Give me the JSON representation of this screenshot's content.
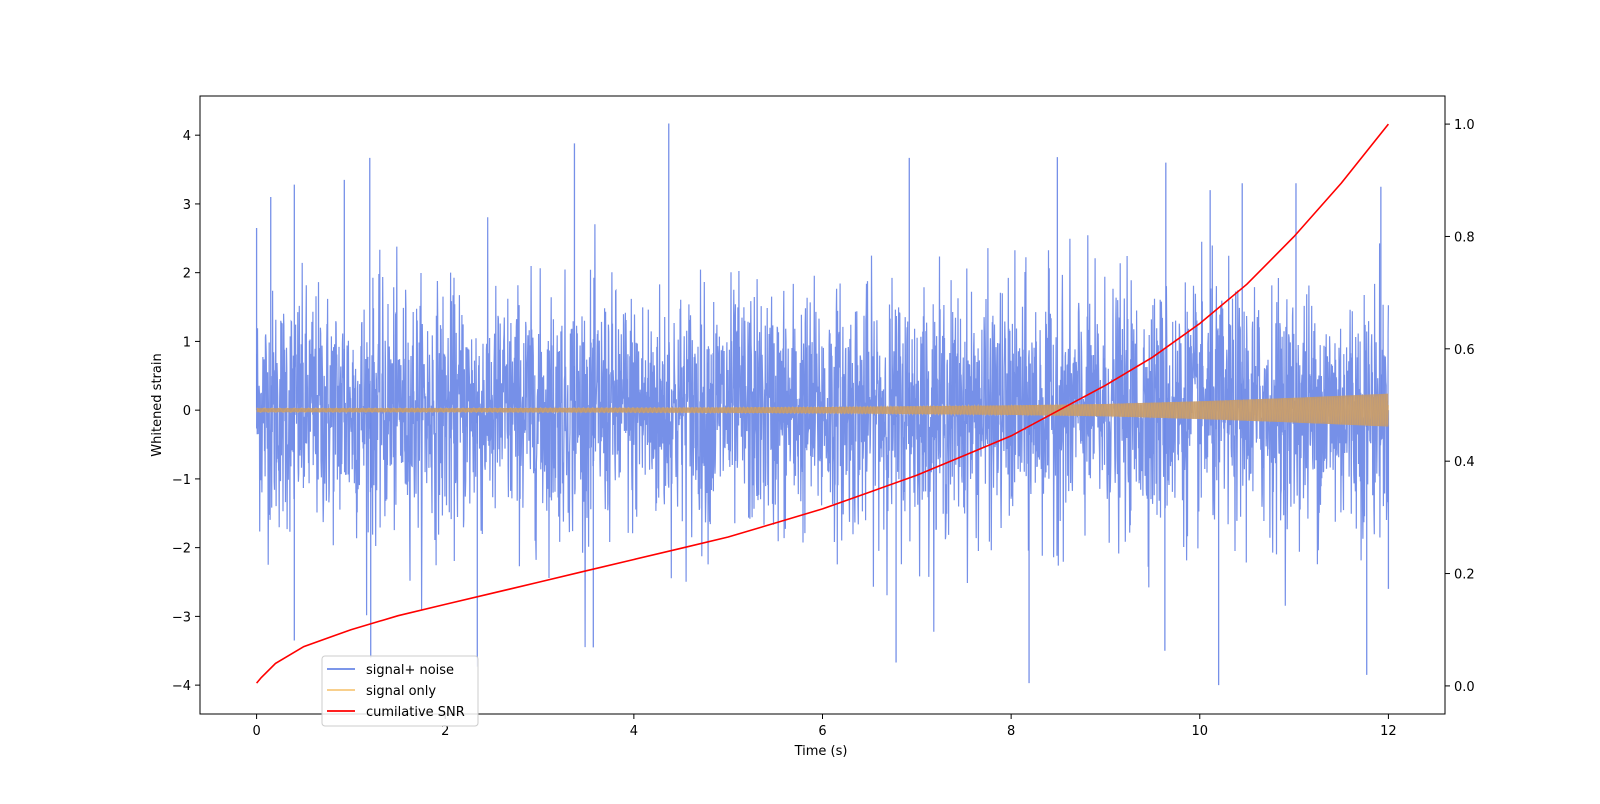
{
  "chart_data": {
    "type": "line",
    "title": "",
    "xlabel": "Time (s)",
    "ylabel": "Whitened strain",
    "y2label": "",
    "xlim": [
      -0.6,
      12.6
    ],
    "ylim": [
      -4.42,
      4.57
    ],
    "y2lim": [
      -0.05,
      1.05
    ],
    "xticks": [
      0,
      2,
      4,
      6,
      8,
      10,
      12
    ],
    "xtick_labels": [
      "0",
      "2",
      "4",
      "6",
      "8",
      "10",
      "12"
    ],
    "yticks": [
      -4,
      -3,
      -2,
      -1,
      0,
      1,
      2,
      3,
      4
    ],
    "ytick_labels": [
      "−4",
      "−3",
      "−2",
      "−1",
      "0",
      "1",
      "2",
      "3",
      "4"
    ],
    "y2ticks": [
      0.0,
      0.2,
      0.4,
      0.6,
      0.8,
      1.0
    ],
    "y2tick_labels": [
      "0.0",
      "0.2",
      "0.4",
      "0.6",
      "0.8",
      "1.0"
    ],
    "legend_position": "lower-left",
    "series": [
      {
        "name": "signal+ noise",
        "axis": "left",
        "color": "#6a87e6",
        "kind": "noise",
        "x_range": [
          0,
          12
        ],
        "typical_amplitude": [
          -1.8,
          1.8
        ],
        "peaks": [
          {
            "x": 0.0,
            "y": 2.65
          },
          {
            "x": 0.15,
            "y": 3.1
          },
          {
            "x": 0.4,
            "y": 3.28
          },
          {
            "x": 0.93,
            "y": 3.35
          },
          {
            "x": 1.2,
            "y": 3.67
          },
          {
            "x": 3.37,
            "y": 3.88
          },
          {
            "x": 4.37,
            "y": 4.17
          },
          {
            "x": 6.92,
            "y": 3.67
          },
          {
            "x": 8.49,
            "y": 3.68
          },
          {
            "x": 9.64,
            "y": 3.6
          },
          {
            "x": 10.11,
            "y": 3.2
          },
          {
            "x": 10.45,
            "y": 3.3
          },
          {
            "x": 11.02,
            "y": 3.3
          },
          {
            "x": 11.92,
            "y": 3.25
          }
        ],
        "troughs": [
          {
            "x": 0.4,
            "y": -3.35
          },
          {
            "x": 1.21,
            "y": -3.6
          },
          {
            "x": 2.34,
            "y": -3.73
          },
          {
            "x": 3.57,
            "y": -3.45
          },
          {
            "x": 6.78,
            "y": -3.67
          },
          {
            "x": 8.19,
            "y": -3.97
          },
          {
            "x": 9.63,
            "y": -3.5
          },
          {
            "x": 10.2,
            "y": -4.0
          },
          {
            "x": 11.77,
            "y": -3.85
          },
          {
            "x": 12.0,
            "y": -2.6
          }
        ]
      },
      {
        "name": "signal only",
        "axis": "left",
        "color": "#f5bf66",
        "kind": "chirp",
        "envelope": {
          "x": [
            0,
            2,
            4,
            6,
            8,
            9,
            10,
            11,
            12
          ],
          "y": [
            0.03,
            0.03,
            0.035,
            0.045,
            0.07,
            0.09,
            0.13,
            0.18,
            0.24
          ]
        }
      },
      {
        "name": "cumilative SNR",
        "axis": "right",
        "color": "#ff0000",
        "x": [
          0,
          0.05,
          0.2,
          0.5,
          1,
          1.5,
          2,
          2.5,
          3,
          3.5,
          4,
          4.5,
          5,
          5.5,
          6,
          6.5,
          7,
          7.5,
          8,
          8.5,
          9,
          9.5,
          10,
          10.5,
          11,
          11.5,
          12
        ],
        "y": [
          0.005,
          0.015,
          0.04,
          0.07,
          0.1,
          0.125,
          0.145,
          0.165,
          0.185,
          0.205,
          0.225,
          0.245,
          0.265,
          0.29,
          0.315,
          0.345,
          0.375,
          0.41,
          0.445,
          0.49,
          0.535,
          0.585,
          0.645,
          0.715,
          0.8,
          0.895,
          1.0
        ]
      }
    ]
  }
}
